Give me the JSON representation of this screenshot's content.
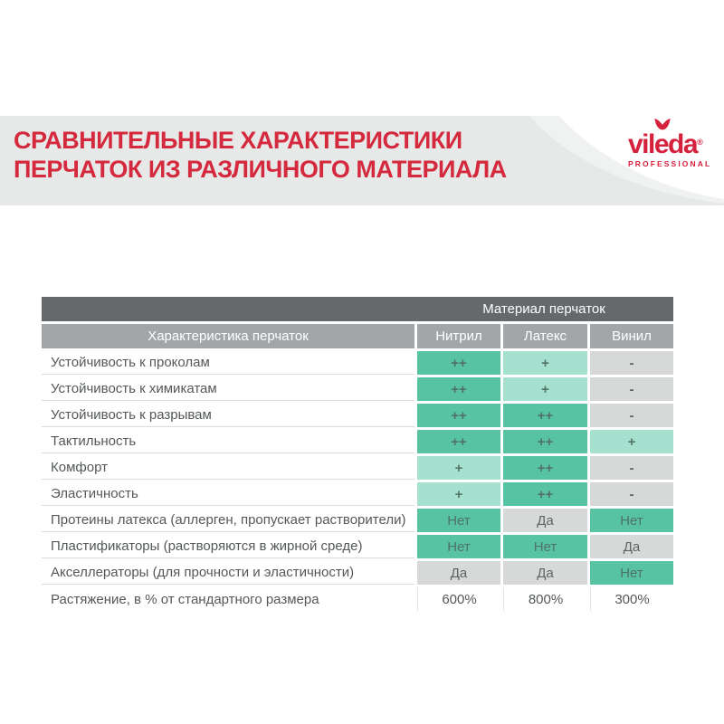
{
  "banner": {
    "title_line1": "СРАВНИТЕЛЬНЫЕ ХАРАКТЕРИСТИКИ",
    "title_line2": "ПЕРЧАТОК ИЗ РАЗЛИЧНОГО МАТЕРИАЛА",
    "title_color": "#d5293d",
    "bg_color": "#e7e9e8"
  },
  "logo": {
    "brand": "vileda",
    "registered": "®",
    "subtitle": "PROFESSIONAL",
    "color": "#d6213c"
  },
  "table": {
    "group_header": "Материал перчаток",
    "characteristic_header": "Характеристика перчаток",
    "materials": [
      "Нитрил",
      "Латекс",
      "Винил"
    ],
    "rows": [
      {
        "label": "Устойчивость к проколам",
        "values": [
          {
            "text": "++",
            "tone": "strong"
          },
          {
            "text": "+",
            "tone": "light"
          },
          {
            "text": "-",
            "tone": "gray"
          }
        ]
      },
      {
        "label": "Устойчивость к химикатам",
        "values": [
          {
            "text": "++",
            "tone": "strong"
          },
          {
            "text": "+",
            "tone": "light"
          },
          {
            "text": "-",
            "tone": "gray"
          }
        ]
      },
      {
        "label": "Устойчивость к разрывам",
        "values": [
          {
            "text": "++",
            "tone": "strong"
          },
          {
            "text": "++",
            "tone": "strong"
          },
          {
            "text": "-",
            "tone": "gray"
          }
        ]
      },
      {
        "label": "Тактильность",
        "values": [
          {
            "text": "++",
            "tone": "strong"
          },
          {
            "text": "++",
            "tone": "strong"
          },
          {
            "text": "+",
            "tone": "light"
          }
        ]
      },
      {
        "label": "Комфорт",
        "values": [
          {
            "text": "+",
            "tone": "light"
          },
          {
            "text": "++",
            "tone": "strong"
          },
          {
            "text": "-",
            "tone": "gray"
          }
        ]
      },
      {
        "label": "Эластичность",
        "values": [
          {
            "text": "+",
            "tone": "light"
          },
          {
            "text": "++",
            "tone": "strong"
          },
          {
            "text": "-",
            "tone": "gray"
          }
        ]
      },
      {
        "label": "Протеины латекса (аллерген, пропускает растворители)",
        "values": [
          {
            "text": "Нет",
            "tone": "strong"
          },
          {
            "text": "Да",
            "tone": "gray"
          },
          {
            "text": "Нет",
            "tone": "strong"
          }
        ]
      },
      {
        "label": "Пластификаторы (растворяются в жирной среде)",
        "values": [
          {
            "text": "Нет",
            "tone": "strong"
          },
          {
            "text": "Нет",
            "tone": "strong"
          },
          {
            "text": "Да",
            "tone": "gray"
          }
        ]
      },
      {
        "label": "Акселлераторы (для прочности и эластичности)",
        "values": [
          {
            "text": "Да",
            "tone": "gray"
          },
          {
            "text": "Да",
            "tone": "gray"
          },
          {
            "text": "Нет",
            "tone": "strong"
          }
        ]
      },
      {
        "label": "Растяжение, в % от стандартного размера",
        "values": [
          {
            "text": "600%",
            "tone": "white"
          },
          {
            "text": "800%",
            "tone": "white"
          },
          {
            "text": "300%",
            "tone": "white"
          }
        ]
      }
    ]
  },
  "colors": {
    "header_dark": "#66696b",
    "header_light": "#a2a6a8",
    "teal_strong": "#57c3a3",
    "teal_light": "#a6e0ce",
    "cell_gray": "#d6d9d7",
    "label_text": "#54585a",
    "separator": "#dbdddc"
  }
}
